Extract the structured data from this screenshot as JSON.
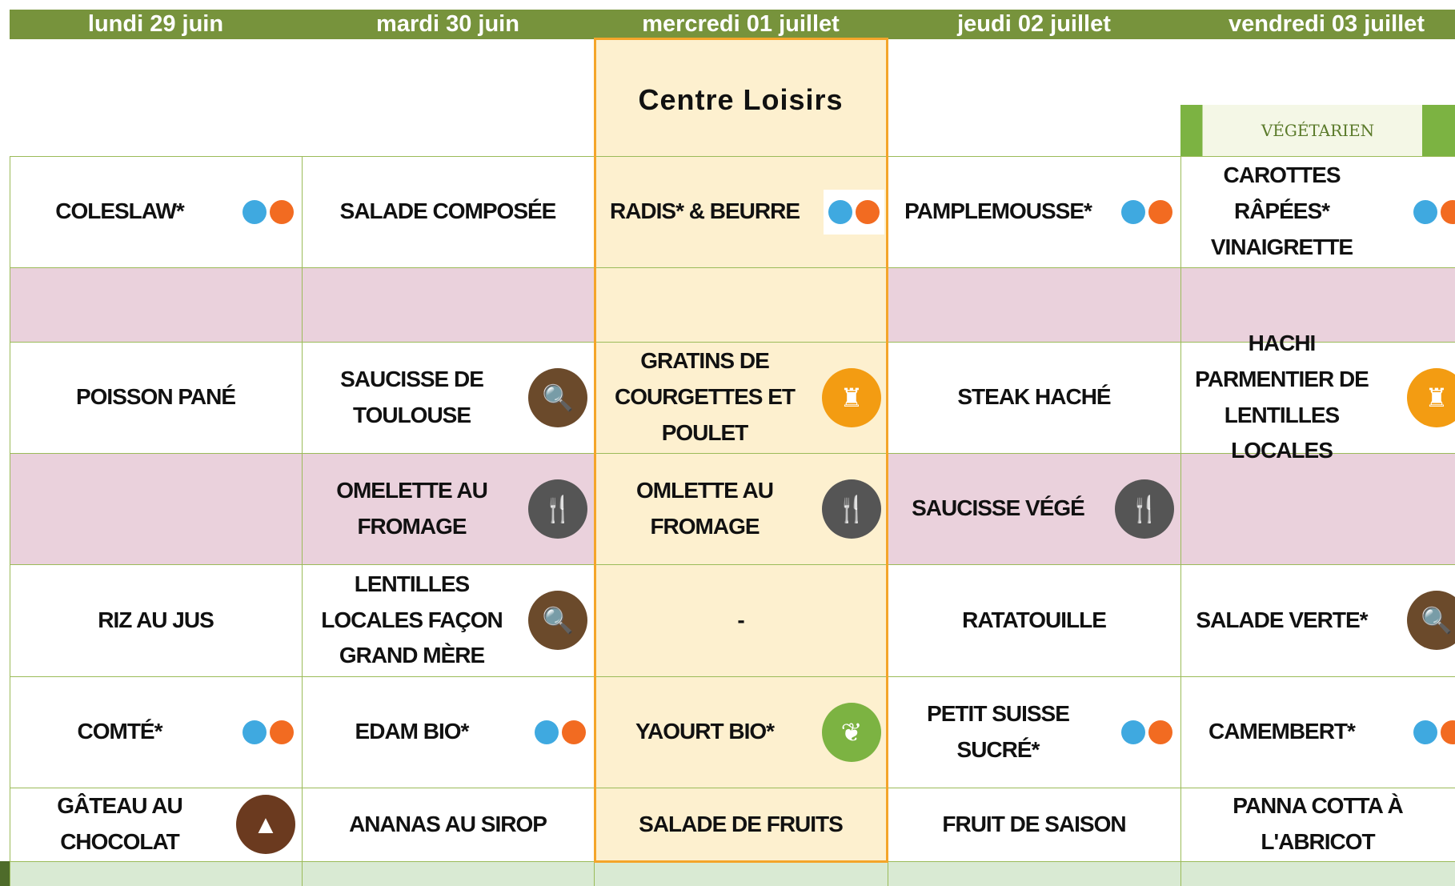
{
  "header": {
    "days": [
      "lundi 29 juin",
      "mardi 30 juin",
      "mercredi 01 juillet",
      "jeudi 02 juillet",
      "vendredi 03 juillet"
    ],
    "special": "Centre Loisirs"
  },
  "banner": {
    "label": "VÉGÉTARIEN"
  },
  "table": {
    "rows": [
      [
        "COLESLAW*",
        "SALADE COMPOSÉE",
        "RADIS* & BEURRE",
        "PAMPLEMOUSSE*",
        "CAROTTES RÂPÉES* VINAIGRETTE"
      ],
      [
        null,
        null,
        null,
        null,
        null
      ],
      [
        "POISSON PANÉ",
        "SAUCISSE DE TOULOUSE",
        "GRATINS DE COURGETTES ET POULET",
        "STEAK HACHÉ",
        "HACHI PARMENTIER DE LENTILLES LOCALES"
      ],
      [
        null,
        "OMELETTE AU FROMAGE",
        "OMLETTE AU FROMAGE",
        "SAUCISSE VÉGÉ",
        null
      ],
      [
        "RIZ AU JUS",
        "LENTILLES LOCALES FAÇON GRAND MÈRE",
        "-",
        "RATATOUILLE",
        "SALADE VERTE*"
      ],
      [
        "COMTÉ*",
        "EDAM BIO*",
        "YAOURT BIO*",
        "PETIT SUISSE SUCRÉ*",
        "CAMEMBERT*"
      ],
      [
        "GÂTEAU AU CHOCOLAT",
        "ANANAS AU SIROP",
        "SALADE DE FRUITS",
        "FRUIT DE SAISON",
        "PANNA COTTA À L'ABRICOT"
      ]
    ]
  }
}
